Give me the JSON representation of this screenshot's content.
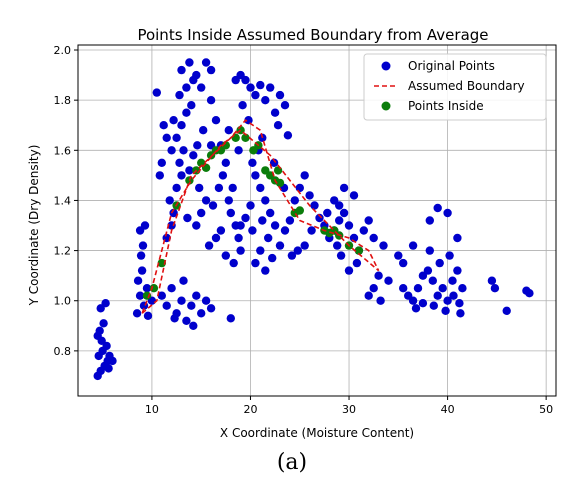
{
  "chart_data": {
    "type": "scatter",
    "title": "Points Inside Assumed Boundary from Average",
    "xlabel": "X Coordinate (Moisture Content)",
    "ylabel": "Y Coordinate (Dry Density)",
    "xlim": [
      2.5,
      51
    ],
    "ylim": [
      0.62,
      2.02
    ],
    "xticks": [
      10,
      20,
      30,
      40,
      50
    ],
    "yticks": [
      0.8,
      1.0,
      1.2,
      1.4,
      1.6,
      1.8,
      2.0
    ],
    "grid": true,
    "legend_position": "top-right",
    "legend": [
      {
        "label": "Original Points",
        "kind": "dot",
        "color": "#0000cc"
      },
      {
        "label": "Assumed Boundary",
        "kind": "dashed-line",
        "color": "#e01010"
      },
      {
        "label": "Points Inside",
        "kind": "dot",
        "color": "#0b7d0b"
      }
    ],
    "series": [
      {
        "name": "Original Points",
        "color": "#0000cc",
        "points": [
          [
            4.5,
            0.7
          ],
          [
            4.8,
            0.72
          ],
          [
            5.2,
            0.74
          ],
          [
            5.5,
            0.76
          ],
          [
            4.6,
            0.78
          ],
          [
            5.0,
            0.8
          ],
          [
            5.7,
            0.78
          ],
          [
            6.0,
            0.76
          ],
          [
            4.9,
            0.84
          ],
          [
            4.7,
            0.88
          ],
          [
            5.1,
            0.91
          ],
          [
            4.8,
            0.97
          ],
          [
            5.3,
            0.99
          ],
          [
            5.6,
            0.73
          ],
          [
            5.4,
            0.82
          ],
          [
            4.5,
            0.86
          ],
          [
            8.5,
            0.95
          ],
          [
            8.8,
            1.02
          ],
          [
            9.2,
            0.98
          ],
          [
            8.6,
            1.08
          ],
          [
            9.5,
            1.05
          ],
          [
            9.0,
            1.12
          ],
          [
            8.9,
            1.18
          ],
          [
            8.8,
            1.28
          ],
          [
            9.3,
            1.3
          ],
          [
            9.1,
            1.22
          ],
          [
            9.6,
            0.94
          ],
          [
            10.0,
            1.0
          ],
          [
            11.0,
            1.02
          ],
          [
            11.5,
            0.98
          ],
          [
            12.0,
            1.05
          ],
          [
            12.5,
            0.95
          ],
          [
            13.0,
            1.0
          ],
          [
            13.5,
            0.92
          ],
          [
            14.0,
            0.98
          ],
          [
            14.5,
            1.02
          ],
          [
            15.0,
            0.95
          ],
          [
            15.5,
            1.0
          ],
          [
            13.2,
            1.08
          ],
          [
            14.2,
            0.9
          ],
          [
            12.3,
            0.93
          ],
          [
            16.0,
            0.97
          ],
          [
            18.0,
            0.93
          ],
          [
            11.5,
            1.25
          ],
          [
            12.0,
            1.3
          ],
          [
            12.2,
            1.35
          ],
          [
            11.8,
            1.4
          ],
          [
            12.5,
            1.45
          ],
          [
            13.0,
            1.5
          ],
          [
            12.8,
            1.55
          ],
          [
            13.2,
            1.6
          ],
          [
            12.5,
            1.65
          ],
          [
            13.0,
            1.7
          ],
          [
            13.5,
            1.75
          ],
          [
            14.0,
            1.78
          ],
          [
            12.8,
            1.82
          ],
          [
            13.5,
            1.85
          ],
          [
            14.2,
            1.88
          ],
          [
            13.0,
            1.92
          ],
          [
            13.8,
            1.95
          ],
          [
            14.5,
            1.9
          ],
          [
            15.0,
            1.85
          ],
          [
            15.5,
            1.95
          ],
          [
            16.0,
            1.92
          ],
          [
            16.0,
            1.8
          ],
          [
            16.5,
            1.72
          ],
          [
            15.2,
            1.68
          ],
          [
            14.6,
            1.62
          ],
          [
            14.2,
            1.58
          ],
          [
            13.8,
            1.52
          ],
          [
            14.8,
            1.45
          ],
          [
            15.5,
            1.4
          ],
          [
            15.0,
            1.35
          ],
          [
            14.5,
            1.3
          ],
          [
            13.6,
            1.33
          ],
          [
            16.2,
            1.38
          ],
          [
            16.8,
            1.45
          ],
          [
            17.2,
            1.5
          ],
          [
            17.5,
            1.55
          ],
          [
            17.0,
            1.62
          ],
          [
            17.8,
            1.4
          ],
          [
            18.0,
            1.35
          ],
          [
            18.5,
            1.3
          ],
          [
            18.8,
            1.25
          ],
          [
            19.0,
            1.2
          ],
          [
            18.3,
            1.15
          ],
          [
            16.5,
            1.25
          ],
          [
            17.0,
            1.28
          ],
          [
            15.8,
            1.22
          ],
          [
            17.5,
            1.18
          ],
          [
            12.0,
            1.6
          ],
          [
            11.5,
            1.65
          ],
          [
            11.0,
            1.55
          ],
          [
            10.8,
            1.5
          ],
          [
            12.2,
            1.72
          ],
          [
            10.5,
            1.83
          ],
          [
            11.2,
            1.7
          ],
          [
            18.5,
            1.88
          ],
          [
            19.0,
            1.9
          ],
          [
            19.5,
            1.88
          ],
          [
            20.0,
            1.85
          ],
          [
            20.5,
            1.82
          ],
          [
            21.0,
            1.86
          ],
          [
            21.5,
            1.8
          ],
          [
            22.5,
            1.75
          ],
          [
            22.0,
            1.85
          ],
          [
            23.0,
            1.82
          ],
          [
            23.5,
            1.78
          ],
          [
            22.8,
            1.7
          ],
          [
            23.8,
            1.66
          ],
          [
            21.2,
            1.65
          ],
          [
            20.8,
            1.6
          ],
          [
            20.2,
            1.55
          ],
          [
            20.5,
            1.5
          ],
          [
            21.0,
            1.45
          ],
          [
            21.5,
            1.4
          ],
          [
            20.0,
            1.38
          ],
          [
            19.5,
            1.33
          ],
          [
            19.0,
            1.3
          ],
          [
            20.2,
            1.28
          ],
          [
            21.2,
            1.32
          ],
          [
            22.0,
            1.35
          ],
          [
            22.5,
            1.3
          ],
          [
            21.8,
            1.25
          ],
          [
            21.0,
            1.2
          ],
          [
            20.5,
            1.15
          ],
          [
            21.5,
            1.12
          ],
          [
            22.2,
            1.17
          ],
          [
            23.0,
            1.22
          ],
          [
            23.5,
            1.28
          ],
          [
            24.0,
            1.32
          ],
          [
            24.5,
            1.4
          ],
          [
            25.0,
            1.45
          ],
          [
            25.5,
            1.5
          ],
          [
            26.0,
            1.42
          ],
          [
            26.5,
            1.38
          ],
          [
            27.0,
            1.33
          ],
          [
            27.5,
            1.3
          ],
          [
            26.2,
            1.28
          ],
          [
            25.5,
            1.22
          ],
          [
            24.8,
            1.2
          ],
          [
            24.2,
            1.18
          ],
          [
            23.4,
            1.45
          ],
          [
            22.4,
            1.55
          ],
          [
            19.8,
            1.72
          ],
          [
            19.2,
            1.78
          ],
          [
            18.8,
            1.6
          ],
          [
            17.8,
            1.68
          ],
          [
            16.0,
            1.62
          ],
          [
            18.2,
            1.45
          ],
          [
            28.0,
            1.25
          ],
          [
            28.5,
            1.28
          ],
          [
            29.0,
            1.32
          ],
          [
            29.5,
            1.35
          ],
          [
            30.0,
            1.3
          ],
          [
            30.5,
            1.25
          ],
          [
            31.0,
            1.2
          ],
          [
            30.8,
            1.15
          ],
          [
            30.0,
            1.12
          ],
          [
            29.2,
            1.18
          ],
          [
            28.8,
            1.22
          ],
          [
            31.5,
            1.28
          ],
          [
            32.0,
            1.32
          ],
          [
            32.5,
            1.25
          ],
          [
            33.5,
            1.22
          ],
          [
            33.0,
            1.1
          ],
          [
            32.5,
            1.05
          ],
          [
            33.2,
            1.0
          ],
          [
            32.0,
            1.02
          ],
          [
            34.0,
            1.08
          ],
          [
            29.5,
            1.45
          ],
          [
            30.5,
            1.42
          ],
          [
            28.5,
            1.4
          ],
          [
            27.8,
            1.35
          ],
          [
            29.0,
            1.38
          ],
          [
            35.0,
            1.18
          ],
          [
            35.5,
            1.05
          ],
          [
            36.0,
            1.02
          ],
          [
            36.5,
            1.0
          ],
          [
            37.0,
            1.05
          ],
          [
            37.5,
            1.1
          ],
          [
            38.0,
            1.12
          ],
          [
            38.5,
            1.08
          ],
          [
            39.0,
            1.02
          ],
          [
            39.5,
            1.05
          ],
          [
            40.0,
            1.0
          ],
          [
            40.5,
            1.08
          ],
          [
            41.0,
            1.12
          ],
          [
            41.5,
            1.05
          ],
          [
            40.2,
            1.18
          ],
          [
            39.2,
            1.15
          ],
          [
            38.2,
            1.2
          ],
          [
            37.5,
            0.99
          ],
          [
            38.6,
            0.98
          ],
          [
            39.8,
            0.96
          ],
          [
            41.2,
            0.99
          ],
          [
            41.0,
            1.25
          ],
          [
            40.0,
            1.35
          ],
          [
            39.0,
            1.37
          ],
          [
            38.2,
            1.32
          ],
          [
            36.5,
            1.22
          ],
          [
            35.5,
            1.15
          ],
          [
            36.8,
            0.97
          ],
          [
            40.6,
            1.02
          ],
          [
            41.3,
            0.95
          ],
          [
            44.5,
            1.08
          ],
          [
            44.8,
            1.05
          ],
          [
            46.0,
            0.96
          ],
          [
            48.0,
            1.04
          ],
          [
            48.3,
            1.03
          ]
        ]
      },
      {
        "name": "Points Inside",
        "color": "#0b7d0b",
        "points": [
          [
            9.5,
            1.02
          ],
          [
            10.2,
            1.05
          ],
          [
            11.0,
            1.15
          ],
          [
            12.5,
            1.38
          ],
          [
            13.8,
            1.48
          ],
          [
            14.5,
            1.52
          ],
          [
            15.0,
            1.55
          ],
          [
            15.5,
            1.53
          ],
          [
            16.0,
            1.58
          ],
          [
            16.5,
            1.6
          ],
          [
            17.0,
            1.6
          ],
          [
            17.5,
            1.62
          ],
          [
            18.5,
            1.65
          ],
          [
            19.0,
            1.68
          ],
          [
            19.5,
            1.65
          ],
          [
            20.3,
            1.6
          ],
          [
            20.8,
            1.62
          ],
          [
            21.5,
            1.52
          ],
          [
            22.0,
            1.5
          ],
          [
            22.5,
            1.48
          ],
          [
            23.0,
            1.47
          ],
          [
            22.8,
            1.52
          ],
          [
            24.5,
            1.35
          ],
          [
            25.0,
            1.36
          ],
          [
            27.5,
            1.28
          ],
          [
            28.0,
            1.27
          ],
          [
            28.5,
            1.28
          ],
          [
            29.0,
            1.26
          ],
          [
            30.0,
            1.22
          ],
          [
            31.0,
            1.2
          ]
        ]
      }
    ],
    "boundary": [
      [
        9.0,
        0.95
      ],
      [
        10.5,
        1.0
      ],
      [
        12.0,
        1.28
      ],
      [
        14.0,
        1.5
      ],
      [
        18.0,
        1.65
      ],
      [
        19.5,
        1.72
      ],
      [
        21.0,
        1.68
      ],
      [
        22.5,
        1.48
      ],
      [
        25.0,
        1.32
      ],
      [
        27.5,
        1.28
      ],
      [
        30.0,
        1.25
      ],
      [
        32.0,
        1.2
      ],
      [
        33.0,
        1.12
      ],
      [
        30.0,
        1.22
      ],
      [
        26.0,
        1.38
      ],
      [
        22.0,
        1.58
      ],
      [
        19.0,
        1.68
      ],
      [
        17.0,
        1.62
      ],
      [
        14.0,
        1.48
      ],
      [
        12.0,
        1.35
      ],
      [
        10.0,
        1.05
      ],
      [
        9.0,
        0.95
      ]
    ]
  },
  "caption": "(a)"
}
